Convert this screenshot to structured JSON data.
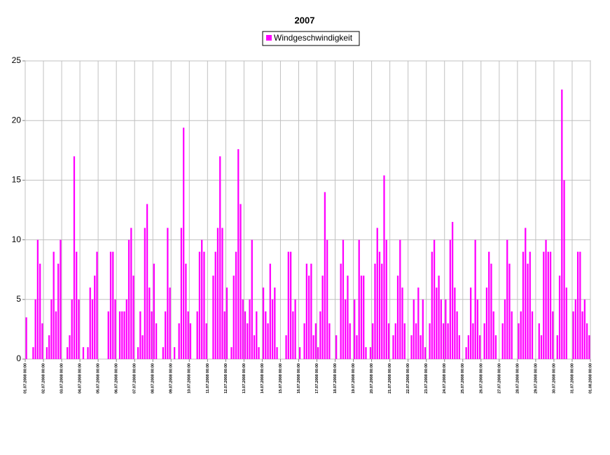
{
  "chart_data": {
    "type": "bar",
    "title": "2007",
    "color": "#ff00ff",
    "grid": true,
    "legend": "top",
    "ylim": [
      0,
      25
    ],
    "yticks": [
      0,
      5,
      10,
      15,
      20,
      25
    ],
    "xlim": [
      0,
      744
    ],
    "xticks": [
      {
        "value": 0,
        "label": "01.07.2008 00:00"
      },
      {
        "value": 24,
        "label": "02.07.2008 00:00"
      },
      {
        "value": 48,
        "label": "03.07.2008 00:00"
      },
      {
        "value": 72,
        "label": "04.07.2008 00:00"
      },
      {
        "value": 96,
        "label": "05.07.2008 00:00"
      },
      {
        "value": 120,
        "label": "06.07.2008 00:00"
      },
      {
        "value": 144,
        "label": "07.07.2008 00:00"
      },
      {
        "value": 168,
        "label": "08.07.2008 00:00"
      },
      {
        "value": 192,
        "label": "09.07.2008 00:00"
      },
      {
        "value": 216,
        "label": "10.07.2008 00:00"
      },
      {
        "value": 240,
        "label": "11.07.2008 00:00"
      },
      {
        "value": 264,
        "label": "12.07.2008 00:00"
      },
      {
        "value": 288,
        "label": "13.07.2008 00:00"
      },
      {
        "value": 312,
        "label": "14.07.2008 00:00"
      },
      {
        "value": 336,
        "label": "15.07.2008 00:00"
      },
      {
        "value": 360,
        "label": "16.07.2008 00:00"
      },
      {
        "value": 384,
        "label": "17.07.2008 00:00"
      },
      {
        "value": 408,
        "label": "18.07.2008 00:00"
      },
      {
        "value": 432,
        "label": "19.07.2008 00:00"
      },
      {
        "value": 456,
        "label": "20.07.2008 00:00"
      },
      {
        "value": 480,
        "label": "21.07.2008 00:00"
      },
      {
        "value": 504,
        "label": "22.07.2008 00:00"
      },
      {
        "value": 528,
        "label": "23.07.2008 00:00"
      },
      {
        "value": 552,
        "label": "24.07.2008 00:00"
      },
      {
        "value": 576,
        "label": "25.07.2008 00:00"
      },
      {
        "value": 600,
        "label": "26.07.2008 00:00"
      },
      {
        "value": 624,
        "label": "27.07.2008 00:00"
      },
      {
        "value": 648,
        "label": "28.07.2008 00:00"
      },
      {
        "value": 672,
        "label": "29.07.2008 00:00"
      },
      {
        "value": 696,
        "label": "30.07.2008 00:00"
      },
      {
        "value": 720,
        "label": "31.07.2008 00:00"
      },
      {
        "value": 744,
        "label": "01.08.2008 00:00"
      }
    ],
    "series": [
      {
        "name": "Windgeschwindigkeit",
        "color": "#ff00ff",
        "x": [
          0,
          3,
          6,
          9,
          12,
          15,
          18,
          21,
          24,
          27,
          30,
          33,
          36,
          39,
          42,
          45,
          48,
          51,
          54,
          57,
          60,
          63,
          66,
          69,
          72,
          75,
          78,
          81,
          84,
          87,
          90,
          93,
          96,
          99,
          102,
          105,
          108,
          111,
          114,
          117,
          120,
          123,
          126,
          129,
          132,
          135,
          138,
          141,
          144,
          147,
          150,
          153,
          156,
          159,
          162,
          165,
          168,
          171,
          174,
          177,
          180,
          183,
          186,
          189,
          192,
          195,
          198,
          201,
          204,
          207,
          210,
          213,
          216,
          219,
          222,
          225,
          228,
          231,
          234,
          237,
          240,
          243,
          246,
          249,
          252,
          255,
          258,
          261,
          264,
          267,
          270,
          273,
          276,
          279,
          282,
          285,
          288,
          291,
          294,
          297,
          300,
          303,
          306,
          309,
          312,
          315,
          318,
          321,
          324,
          327,
          330,
          333,
          336,
          339,
          342,
          345,
          348,
          351,
          354,
          357,
          360,
          363,
          366,
          369,
          372,
          375,
          378,
          381,
          384,
          387,
          390,
          393,
          396,
          399,
          402,
          405,
          408,
          411,
          414,
          417,
          420,
          423,
          426,
          429,
          432,
          435,
          438,
          441,
          444,
          447,
          450,
          453,
          456,
          459,
          462,
          465,
          468,
          471,
          474,
          477,
          480,
          483,
          486,
          489,
          492,
          495,
          498,
          501,
          504,
          507,
          510,
          513,
          516,
          519,
          522,
          525,
          528,
          531,
          534,
          537,
          540,
          543,
          546,
          549,
          552,
          555,
          558,
          561,
          564,
          567,
          570,
          573,
          576,
          579,
          582,
          585,
          588,
          591,
          594,
          597,
          600,
          603,
          606,
          609,
          612,
          615,
          618,
          621,
          624,
          627,
          630,
          633,
          636,
          639,
          642,
          645,
          648,
          651,
          654,
          657,
          660,
          663,
          666,
          669,
          672,
          675,
          678,
          681,
          684,
          687,
          690,
          693,
          696,
          699,
          702,
          705,
          708,
          711,
          714,
          717,
          720,
          723,
          726,
          729,
          732,
          735,
          738,
          741
        ],
        "values": [
          3.5,
          0,
          0,
          1,
          5,
          10,
          8,
          3,
          0,
          1,
          2,
          5,
          9,
          4,
          8,
          10,
          0,
          0,
          1,
          2,
          5,
          17,
          9,
          5,
          0,
          1,
          0,
          1,
          6,
          5,
          7,
          9,
          0,
          0,
          0,
          0,
          4,
          9,
          9,
          5,
          0,
          4,
          4,
          4,
          5,
          10,
          11,
          7,
          0,
          1,
          4,
          2,
          11,
          13,
          6,
          4,
          8,
          3,
          0,
          0,
          1,
          4,
          11,
          6,
          0,
          1,
          0,
          3,
          11,
          19.4,
          8,
          4,
          3,
          0,
          0,
          4,
          9,
          10,
          9,
          3,
          0,
          0,
          7,
          9,
          11,
          17,
          11,
          4,
          6,
          0,
          1,
          7,
          9,
          17.6,
          13,
          5,
          4,
          3,
          5,
          10,
          2,
          4,
          1,
          0,
          6,
          4,
          3,
          8,
          5,
          6,
          1,
          0,
          0,
          0,
          2,
          9,
          9,
          4,
          5,
          0,
          1,
          0,
          3,
          8,
          7,
          8,
          2,
          3,
          1,
          4,
          7,
          14,
          10,
          3,
          0,
          0,
          2,
          0,
          8,
          10,
          5,
          7,
          3,
          0,
          5,
          2,
          10,
          7,
          7,
          1,
          0,
          1,
          3,
          8,
          11,
          9,
          8,
          15.4,
          10,
          3,
          0,
          2,
          3,
          7,
          10,
          6,
          3,
          0,
          0,
          2,
          5,
          3,
          6,
          2,
          5,
          1,
          0,
          3,
          9,
          10,
          6,
          7,
          5,
          3,
          5,
          3,
          10,
          11.5,
          6,
          4,
          2,
          0,
          0,
          1,
          2,
          6,
          3,
          10,
          5,
          2,
          0,
          3,
          6,
          9,
          8,
          4,
          2,
          0,
          0,
          3,
          5,
          10,
          8,
          4,
          0,
          0,
          3,
          4,
          9,
          11,
          8,
          9,
          4,
          0,
          0,
          3,
          2,
          9,
          10,
          9,
          9,
          4,
          0,
          2,
          7,
          22.6,
          15,
          6,
          0,
          0,
          4,
          5,
          9,
          9,
          4,
          5,
          3,
          2
        ]
      }
    ]
  }
}
